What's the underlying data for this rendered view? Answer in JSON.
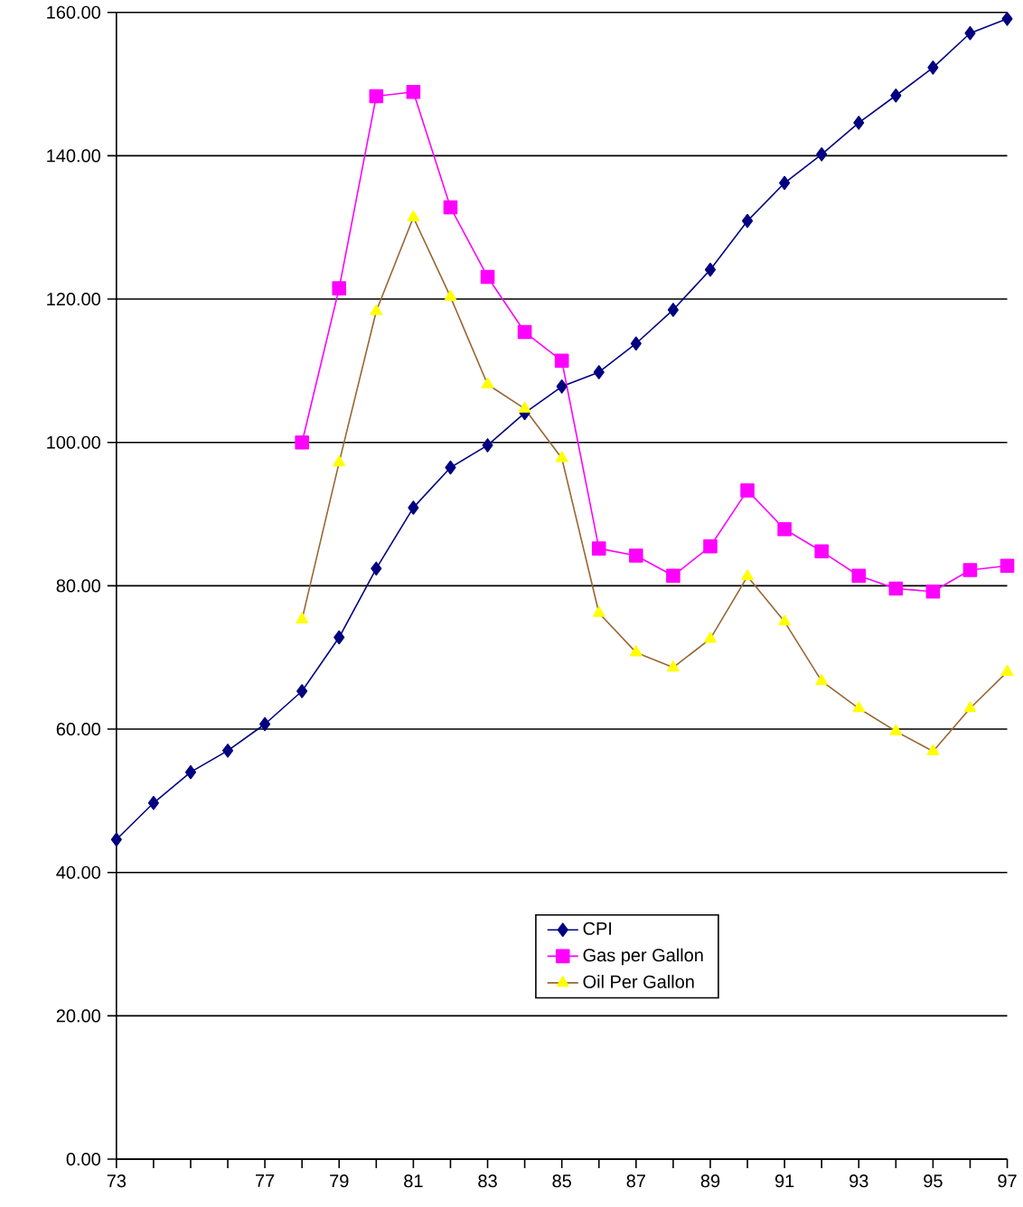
{
  "chart_data": {
    "type": "line",
    "categories": [
      "73",
      null,
      null,
      null,
      "77",
      null,
      "79",
      null,
      "81",
      null,
      "83",
      null,
      "85",
      null,
      "87",
      null,
      "89",
      null,
      "91",
      null,
      "93",
      null,
      "95",
      null,
      "97"
    ],
    "series": [
      {
        "name": "CPI",
        "color": "#000080",
        "marker": "diamond",
        "values": [
          44.6,
          49.7,
          54.0,
          57.0,
          60.7,
          65.3,
          72.8,
          82.4,
          90.9,
          96.5,
          99.6,
          104.1,
          107.8,
          109.8,
          113.8,
          118.5,
          124.1,
          130.9,
          136.2,
          140.2,
          144.6,
          148.4,
          152.3,
          157.1,
          159.1
        ]
      },
      {
        "name": "Gas per Gallon",
        "color": "#ff00ff",
        "marker": "square",
        "values": [
          null,
          null,
          null,
          null,
          null,
          100.0,
          121.5,
          148.3,
          148.9,
          132.8,
          123.1,
          115.4,
          111.4,
          85.2,
          84.2,
          81.4,
          85.5,
          93.3,
          87.9,
          84.8,
          81.4,
          79.6,
          79.2,
          82.2,
          82.8
        ]
      },
      {
        "name": "Oil Per Gallon",
        "color": "#996633",
        "colors": [
          null,
          null,
          null,
          null,
          null,
          "#ffff00",
          "#ffff00",
          "#ffff00",
          "#ffff00",
          "#ffff00",
          "#ffff00",
          "#ffff00",
          "#ffff00",
          "#ffff00",
          "#ffff00",
          "#ffff00",
          "#ffff00",
          "#ffff00",
          "#ffff00",
          "#ffff00",
          "#ffff00",
          "#ffff00",
          "#ffff00",
          "#ffff00",
          "#ffff00"
        ],
        "marker": "triangle",
        "values": [
          null,
          null,
          null,
          null,
          null,
          75.3,
          97.2,
          118.3,
          131.4,
          120.3,
          108.1,
          104.7,
          97.8,
          76.2,
          70.7,
          68.6,
          72.6,
          81.3,
          75.0,
          66.7,
          62.9,
          59.7,
          56.9,
          62.9,
          68.0
        ]
      }
    ],
    "ylim": [
      0,
      160
    ],
    "yticks": [
      {
        "value": 0,
        "label": "0.00"
      },
      {
        "value": 20,
        "label": "20.00"
      },
      {
        "value": 40,
        "label": "40.00"
      },
      {
        "value": 60,
        "label": "60.00"
      },
      {
        "value": 80,
        "label": "80.00"
      },
      {
        "value": 100,
        "label": "100.00"
      },
      {
        "value": 120,
        "label": "120.00"
      },
      {
        "value": 140,
        "label": "140.00"
      },
      {
        "value": 160,
        "label": "160.00"
      }
    ],
    "grid": "y",
    "legend": "bottom right",
    "line_style": "solid"
  }
}
